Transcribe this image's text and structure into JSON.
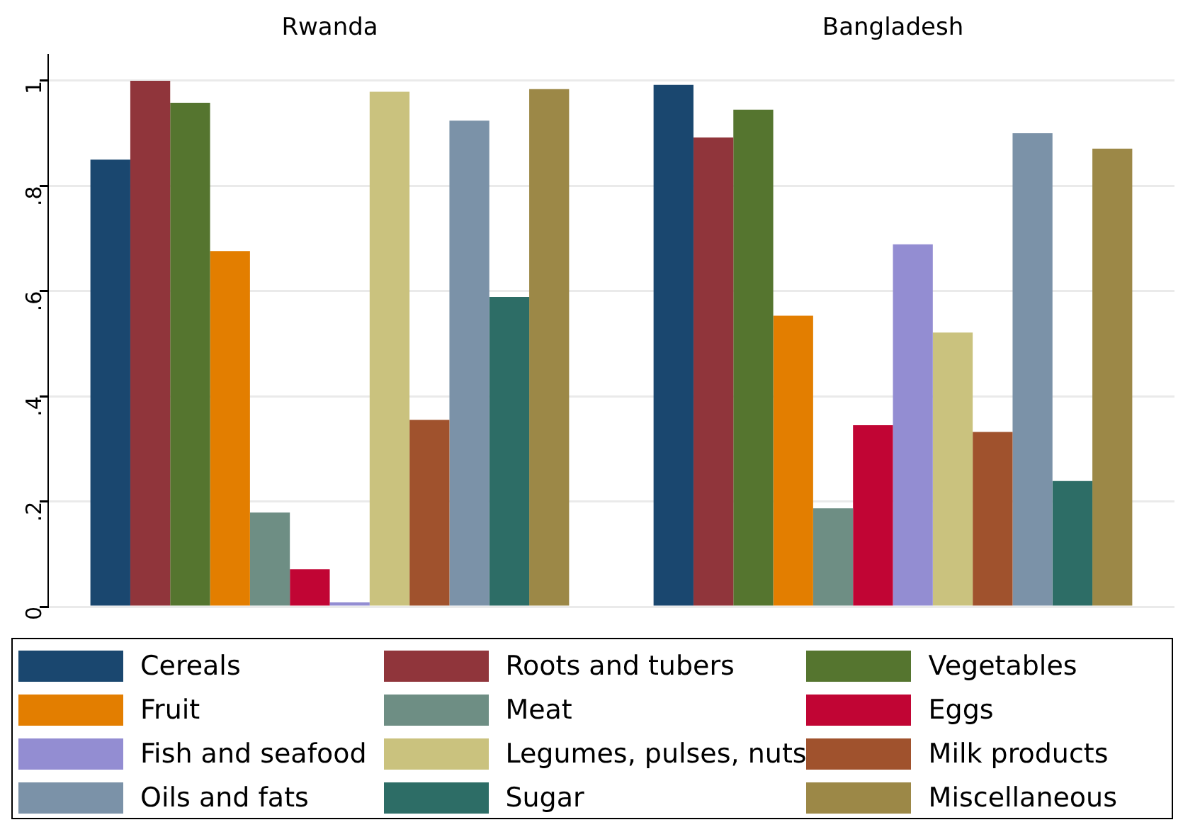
{
  "chart_data": {
    "type": "bar",
    "categories": [
      "Rwanda",
      "Bangladesh"
    ],
    "ylim": [
      0,
      1.05
    ],
    "yticks": [
      {
        "value": 0,
        "label": "0"
      },
      {
        "value": 0.2,
        "label": ".2"
      },
      {
        "value": 0.4,
        "label": ".4"
      },
      {
        "value": 0.6,
        "label": ".6"
      },
      {
        "value": 0.8,
        "label": ".8"
      },
      {
        "value": 1,
        "label": "1"
      }
    ],
    "grid": "y",
    "legend": "bottom",
    "series": [
      {
        "name": "Cereals",
        "color": "#1a476f",
        "values": [
          0.85,
          0.992
        ]
      },
      {
        "name": "Roots and tubers",
        "color": "#90353b",
        "values": [
          1.0,
          0.892
        ]
      },
      {
        "name": "Vegetables",
        "color": "#55752f",
        "values": [
          0.958,
          0.945
        ]
      },
      {
        "name": "Fruit",
        "color": "#e37e00",
        "values": [
          0.676,
          0.553
        ]
      },
      {
        "name": "Meat",
        "color": "#6e8e84",
        "values": [
          0.179,
          0.187
        ]
      },
      {
        "name": "Eggs",
        "color": "#c10534",
        "values": [
          0.071,
          0.345
        ]
      },
      {
        "name": "Fish and seafood",
        "color": "#938dd2",
        "values": [
          0.008,
          0.689
        ]
      },
      {
        "name": "Legumes, pulses, nuts",
        "color": "#cac27e",
        "values": [
          0.979,
          0.521
        ]
      },
      {
        "name": "Milk products",
        "color": "#a0522d",
        "values": [
          0.355,
          0.332
        ]
      },
      {
        "name": "Oils and fats",
        "color": "#7b92a8",
        "values": [
          0.924,
          0.9
        ]
      },
      {
        "name": "Sugar",
        "color": "#2d6d66",
        "values": [
          0.589,
          0.239
        ]
      },
      {
        "name": "Miscellaneous",
        "color": "#9c8847",
        "values": [
          0.984,
          0.871
        ]
      }
    ]
  }
}
